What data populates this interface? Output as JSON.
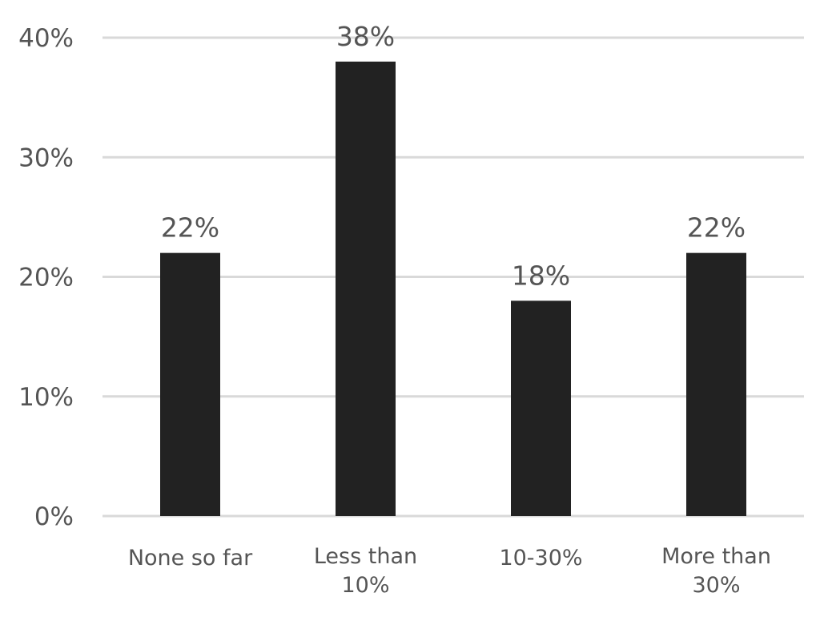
{
  "chart_data": {
    "type": "bar",
    "categories": [
      [
        "None so far"
      ],
      [
        "Less than",
        "10%"
      ],
      [
        "10-30%"
      ],
      [
        "More than",
        "30%"
      ]
    ],
    "values": [
      22,
      38,
      18,
      22
    ],
    "data_labels": [
      "22%",
      "38%",
      "18%",
      "22%"
    ],
    "ylim": [
      0,
      40
    ],
    "yticks": [
      {
        "value": 0,
        "label": "0%"
      },
      {
        "value": 10,
        "label": "10%"
      },
      {
        "value": 20,
        "label": "20%"
      },
      {
        "value": 30,
        "label": "30%"
      },
      {
        "value": 40,
        "label": "40%"
      }
    ],
    "bar_color": "#222222",
    "grid": true,
    "legend": "none"
  }
}
